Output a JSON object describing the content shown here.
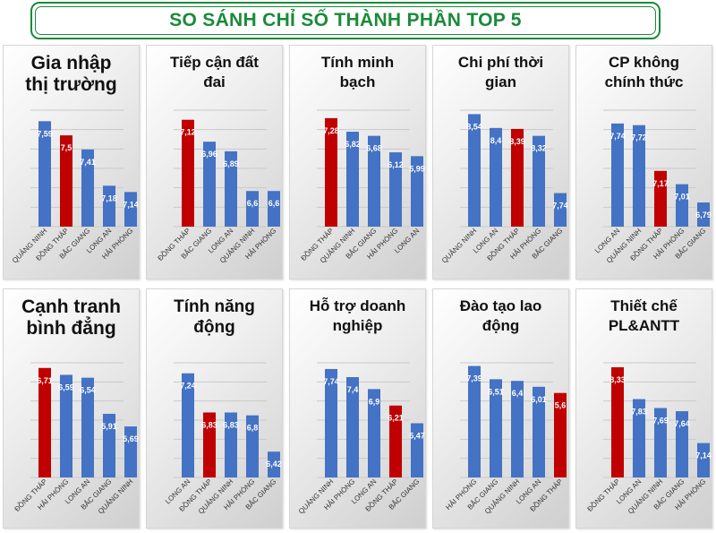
{
  "title": "SO SÁNH CHỈ SỐ THÀNH PHẦN TOP 5",
  "colors": {
    "title_green": "#1b8a3a",
    "bar_blue": "#4472c4",
    "bar_red": "#c00000",
    "highlight_category": "ĐỒNG THÁP"
  },
  "chart_data": [
    {
      "type": "bar",
      "title": "Gia nhập\nthị trường",
      "categories": [
        "QUẢNG NINH",
        "ĐỒNG THÁP",
        "BẮC GIANG",
        "LONG AN",
        "HẢI PHÒNG"
      ],
      "values": [
        7.59,
        7.5,
        7.41,
        7.18,
        7.14
      ],
      "labels": [
        "7,59",
        "7,5",
        "7,41",
        "7,18",
        "7,14"
      ],
      "ylim": [
        6.92,
        7.66
      ],
      "grid": true
    },
    {
      "type": "bar",
      "title": "Tiếp cận đất\nđai",
      "categories": [
        "ĐỒNG THÁP",
        "BẮC GIANG",
        "LONG AN",
        "QUẢNG NINH",
        "HẢI PHÒNG"
      ],
      "values": [
        7.12,
        6.96,
        6.89,
        6.6,
        6.6
      ],
      "labels": [
        "7,12",
        "6,96",
        "6,89",
        "6,6",
        "6,6"
      ],
      "ylim": [
        6.34,
        7.19
      ],
      "grid": true
    },
    {
      "type": "bar",
      "title": "Tính minh\nbạch",
      "categories": [
        "ĐỒNG THÁP",
        "QUẢNG NINH",
        "BẮC GIANG",
        "HẢI PHÒNG",
        "LONG AN"
      ],
      "values": [
        7.28,
        6.82,
        6.68,
        6.12,
        5.99
      ],
      "labels": [
        "7,28",
        "6,82",
        "6,68",
        "6,12",
        "5,99"
      ],
      "ylim": [
        3.6,
        7.55
      ],
      "grid": true
    },
    {
      "type": "bar",
      "title": "Chi phí thời\ngian",
      "categories": [
        "QUẢNG NINH",
        "LONG AN",
        "ĐỒNG THÁP",
        "HẢI PHÒNG",
        "BẮC GIANG"
      ],
      "values": [
        8.54,
        8.4,
        8.39,
        8.32,
        7.74
      ],
      "labels": [
        "8,54",
        "8,4",
        "8,39",
        "8,32",
        "7,74"
      ],
      "ylim": [
        7.4,
        8.58
      ],
      "grid": true
    },
    {
      "type": "bar",
      "title": "CP không\nchính thức",
      "categories": [
        "LONG AN",
        "QUẢNG NINH",
        "ĐỒNG THÁP",
        "HẢI PHÒNG",
        "BẮC GIANG"
      ],
      "values": [
        7.74,
        7.72,
        7.17,
        7.01,
        6.79
      ],
      "labels": [
        "7,74",
        "7,72",
        "7,17",
        "7,01",
        "6,79"
      ],
      "ylim": [
        6.5,
        7.9
      ],
      "grid": true
    },
    {
      "type": "bar",
      "title": "Cạnh tranh\nbình đẳng",
      "categories": [
        "ĐỒNG THÁP",
        "HẢI PHÒNG",
        "LONG AN",
        "BẮC GIANG",
        "QUẢNG NINH"
      ],
      "values": [
        6.71,
        6.59,
        6.54,
        5.91,
        5.69
      ],
      "labels": [
        "6,71",
        "6,59",
        "6,54",
        "5,91",
        "5,69"
      ],
      "ylim": [
        4.8,
        6.8
      ],
      "grid": true
    },
    {
      "type": "bar",
      "title": "Tính năng\nđộng",
      "categories": [
        "LONG AN",
        "ĐỒNG THÁP",
        "QUẢNG NINH",
        "HẢI PHÒNG",
        "BẮC GIANG"
      ],
      "values": [
        7.24,
        6.83,
        6.83,
        6.8,
        6.42
      ],
      "labels": [
        "7,24",
        "6,83",
        "6,83",
        "6,8",
        "6,42"
      ],
      "ylim": [
        6.15,
        7.35
      ],
      "grid": true
    },
    {
      "type": "bar",
      "title": "Hỗ trợ doanh\nnghiệp",
      "categories": [
        "QUẢNG NINH",
        "HẢI PHÒNG",
        "LONG AN",
        "ĐỒNG THÁP",
        "BẮC GIANG"
      ],
      "values": [
        7.74,
        7.4,
        6.9,
        6.21,
        5.47
      ],
      "labels": [
        "7,74",
        "7,4",
        "6,9",
        "6,21",
        "5,47"
      ],
      "ylim": [
        3.2,
        8.0
      ],
      "grid": true
    },
    {
      "type": "bar",
      "title": "Đào tạo lao\nđộng",
      "categories": [
        "HẢI PHÒNG",
        "BẮC GIANG",
        "QUẢNG NINH",
        "LONG AN",
        "ĐỒNG THÁP"
      ],
      "values": [
        7.39,
        6.51,
        6.4,
        6.01,
        5.6
      ],
      "labels": [
        "7,39",
        "6,51",
        "6,4",
        "6,01",
        "5,6"
      ],
      "ylim": [
        0.0,
        7.6
      ],
      "grid": true
    },
    {
      "type": "bar",
      "title": "Thiết chế\nPL&ANTT",
      "categories": [
        "ĐỒNG THÁP",
        "LONG AN",
        "QUẢNG NINH",
        "BẮC GIANG",
        "HẢI PHÒNG"
      ],
      "values": [
        8.33,
        7.83,
        7.69,
        7.64,
        7.14
      ],
      "labels": [
        "8,33",
        "7,83",
        "7,69",
        "7,64",
        "7,14"
      ],
      "ylim": [
        6.6,
        8.4
      ],
      "grid": true
    }
  ]
}
